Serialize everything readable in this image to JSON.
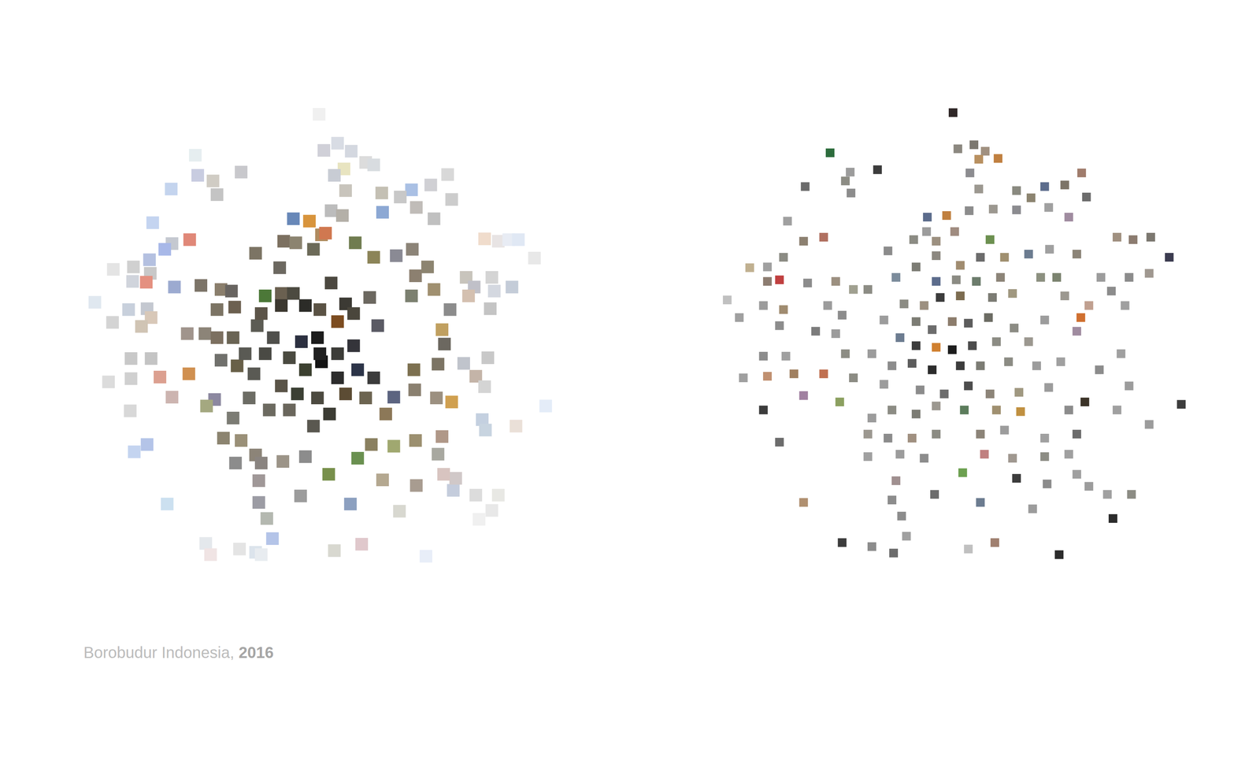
{
  "caption": {
    "text": "Borobudur Indonesia,",
    "year": "2016"
  },
  "chart_data": [
    {
      "type": "scatter",
      "marker": "square",
      "tick_labels": false,
      "grid": false,
      "xlim": [
        100,
        700
      ],
      "ylim": [
        720,
        120
      ],
      "x": [
        397,
        243,
        420,
        437,
        403,
        300,
        265,
        246,
        270,
        213,
        428,
        455,
        465,
        416,
        430,
        475,
        512,
        536,
        557,
        562,
        498,
        518,
        476,
        540,
        412,
        426,
        190,
        236,
        214,
        205,
        186,
        166,
        141,
        187,
        165,
        182,
        217,
        118,
        160,
        183,
        188,
        176,
        140,
        603,
        620,
        633,
        645,
        665,
        580,
        612,
        590,
        615,
        637,
        583,
        610,
        163,
        188,
        135,
        163,
        199,
        235,
        214,
        162,
        183,
        167,
        607,
        577,
        592,
        603,
        679,
        600,
        604,
        642,
        208,
        256,
        262,
        298,
        318,
        339,
        325,
        416,
        450,
        530,
        497,
        592,
        620,
        596,
        612,
        564,
        567,
        552,
        365,
        385,
        400,
        405,
        353,
        368,
        390,
        442,
        465,
        493,
        513,
        318,
        348,
        250,
        275,
        288,
        330,
        350,
        517,
        532,
        512,
        540,
        560,
        550,
        553,
        233,
        255,
        270,
        290,
        270,
        292,
        275,
        295,
        316,
        515,
        545,
        516,
        490,
        480,
        543,
        562,
        267,
        257,
        290,
        278,
        300,
        318,
        293,
        325,
        352,
        380,
        409,
        445,
        462,
        490,
        517,
        545,
        550,
        322,
        322,
        332,
        374,
        436,
        476,
        518,
        350,
        365,
        380,
        398,
        430,
        412,
        420,
        440,
        460,
        470,
        395,
        375,
        400,
        420,
        440,
        445,
        465,
        380,
        360,
        340,
        320,
        330,
        350,
        370,
        395,
        410,
        430,
        455,
        390,
        360,
        335,
        310,
        305,
        325,
        420,
        398
      ],
      "values": [
        142,
        193,
        178,
        188,
        187,
        214,
        225,
        218,
        242,
        235,
        210,
        202,
        205,
        218,
        237,
        240,
        236,
        230,
        217,
        248,
        245,
        258,
        264,
        272,
        262,
        268,
        277,
        298,
        303,
        310,
        323,
        332,
        335,
        340,
        350,
        351,
        357,
        376,
        385,
        384,
        395,
        406,
        401,
        297,
        300,
        298,
        298,
        321,
        345,
        345,
        357,
        362,
        357,
        368,
        384,
        446,
        446,
        475,
        471,
        469,
        465,
        494,
        511,
        553,
        562,
        445,
        452,
        468,
        481,
        505,
        522,
        535,
        530,
        627,
        676,
        690,
        683,
        687,
        670,
        690,
        685,
        677,
        692,
        636,
        616,
        616,
        646,
        635,
        610,
        595,
        590,
        272,
        275,
        292,
        290,
        300,
        302,
        310,
        302,
        320,
        318,
        310,
        315,
        333,
        355,
        360,
        362,
        368,
        365,
        343,
        332,
        368,
        360,
        385,
        410,
        428,
        415,
        415,
        420,
        420,
        385,
        382,
        448,
        455,
        465,
        460,
        453,
        485,
        494,
        515,
        495,
        500,
        497,
        505,
        520,
        545,
        548,
        566,
        576,
        576,
        574,
        568,
        590,
        570,
        553,
        555,
        548,
        565,
        543,
        598,
        625,
        645,
        617,
        627,
        597,
        604,
        380,
        365,
        380,
        385,
        378,
        352,
        400,
        390,
        370,
        405,
        420,
        425,
        450,
        440,
        430,
        460,
        470,
        460,
        445,
        420,
        405,
        440,
        480,
        490,
        495,
        515,
        490,
        495,
        530,
        510,
        510,
        495,
        440,
        390,
        470,
        440
      ],
      "colors": [
        "#f0f0f0",
        "#e6eef0",
        "#d8dce4",
        "#d4d8e0",
        "#d0d0d8",
        "#c8c8cc",
        "#d0ccc4",
        "#c8cce0",
        "#c4c4c4",
        "#c4d4ee",
        "#e8e4c0",
        "#dcdcdc",
        "#d8dce0",
        "#c8ccd4",
        "#c8c4bc",
        "#c4c0b4",
        "#aac0e4",
        "#d0d0d4",
        "#d8d8d8",
        "#cccccc",
        "#c8c8c8",
        "#c0bcb8",
        "#8ca8d4",
        "#c0c0c0",
        "#bcbcbc",
        "#b4b0a8",
        "#c4d4f0",
        "#e08878",
        "#c4c8d0",
        "#a8b8e8",
        "#b4c0e0",
        "#d0d0d0",
        "#e4e4e4",
        "#c8c8c8",
        "#d0d4dc",
        "#e49080",
        "#9caad0",
        "#e0e8f0",
        "#c8d0dc",
        "#c4c8d0",
        "#d8c8b8",
        "#d0c4b4",
        "#d4d4d4",
        "#f0dccc",
        "#e8e4e4",
        "#e8ecf4",
        "#e0e8f4",
        "#e8e8e8",
        "#c8c4bc",
        "#d4d4d4",
        "#c0c0c8",
        "#d4d8e0",
        "#c4ccd8",
        "#d4c0b0",
        "#c4c4c4",
        "#c8c8c8",
        "#c4c4c4",
        "#dcdcdc",
        "#d0d0d0",
        "#dca090",
        "#d09050",
        "#ccb4b0",
        "#d8d8d8",
        "#b4c4e8",
        "#c4d4f0",
        "#c8c8c8",
        "#c0c4cc",
        "#c4b4a8",
        "#d4d4d4",
        "#e4ecf8",
        "#c4d0e0",
        "#c8d4e0",
        "#eae0d8",
        "#cce0f0",
        "#e4e8ec",
        "#f0e4e4",
        "#e4e4e4",
        "#dce4ec",
        "#b4c4e8",
        "#e8ecf0",
        "#d8d8d0",
        "#e0c8cc",
        "#e8eef8",
        "#d8d8d0",
        "#dcdcdc",
        "#e8e8e4",
        "#f0f0f0",
        "#e8e8e8",
        "#c4ccdc",
        "#d0c8c8",
        "#d8c4c0",
        "#6888b8",
        "#d8943c",
        "#b08c60",
        "#d07850",
        "#7c7060",
        "#8c8470",
        "#6c6a58",
        "#707c50",
        "#8c8458",
        "#8a8a94",
        "#8c8478",
        "#7c7464",
        "#6c6860",
        "#7c7468",
        "#8a7e6c",
        "#686460",
        "#4c7838",
        "#6a6050",
        "#8c8070",
        "#8c8470",
        "#7c8070",
        "#a09070",
        "#8c8c8c",
        "#c0a060",
        "#6c6860",
        "#a0948c",
        "#8c8478",
        "#7c7060",
        "#6a6454",
        "#7c7464",
        "#6c6050",
        "#70706c",
        "#686048",
        "#5a5a54",
        "#7c7050",
        "#7c7464",
        "#8a8070",
        "#5c6480",
        "#8c7858",
        "#9c9080",
        "#d0a050",
        "#8c88a0",
        "#a4a880",
        "#7c7c74",
        "#8c8470",
        "#9a9078",
        "#8c8478",
        "#8c8c8c",
        "#8a8480",
        "#9c9488",
        "#8c8c8c",
        "#78904c",
        "#6a9050",
        "#8a8060",
        "#a0a870",
        "#9c9070",
        "#a8a8a0",
        "#b09888",
        "#a09898",
        "#9c9ca4",
        "#b4b8b0",
        "#9c9c9c",
        "#8ca0c0",
        "#b4a890",
        "#a89c90",
        "#3c3830",
        "#4c4a40",
        "#2c2c28",
        "#5a5244",
        "#3c3a34",
        "#4c4840",
        "#7c4c20",
        "#4a463c",
        "#6c6860",
        "#5a5a64",
        "#1c1c1c",
        "#2c3040",
        "#141414",
        "#3c3c38",
        "#34343a",
        "#2c3448",
        "#3c3c3c",
        "#3c4030",
        "#4a4a40",
        "#50504c",
        "#5c5c54",
        "#4a4a44",
        "#5a5448",
        "#3c4034",
        "#4c4a40",
        "#3c3c34",
        "#5c4c34",
        "#6c6450",
        "#5a5850",
        "#6a665c",
        "#6c6a60",
        "#6c6c64",
        "#5a5a54",
        "#5c5448",
        "#2c2c2c",
        "#202020"
      ]
    },
    {
      "type": "scatter",
      "marker": "square",
      "tick_labels": false,
      "grid": false,
      "xlim": [
        890,
        1490
      ],
      "ylim": [
        720,
        120
      ],
      "x": [
        1186,
        1033,
        1092,
        1192,
        1212,
        1226,
        1218,
        1207,
        1242,
        1058,
        1052,
        1002,
        1059,
        1218,
        1265,
        1300,
        1283,
        1325,
        1346,
        1206,
        1236,
        1265,
        1305,
        1330,
        1352,
        1154,
        1178,
        1153,
        1188,
        980,
        1025,
        1000,
        1137,
        1165,
        1232,
        1390,
        1410,
        1432,
        1455,
        1105,
        1250,
        1280,
        1306,
        1340,
        975,
        955,
        933,
        1140,
        1195,
        1220,
        1165,
        1295,
        1315,
        1370,
        1405,
        1430,
        955,
        970,
        1005,
        1040,
        1062,
        1080,
        1115,
        1165,
        1190,
        1215,
        1245,
        1170,
        1195,
        1150,
        1125,
        1235,
        1260,
        1325,
        1355,
        1383,
        1400,
        905,
        950,
        975,
        1030,
        1048,
        1100,
        1140,
        1160,
        1185,
        1205,
        1230,
        1262,
        1300,
        1345,
        920,
        970,
        1015,
        1040,
        1120,
        1140,
        1165,
        1185,
        1210,
        1240,
        1280,
        1340,
        1395,
        950,
        978,
        1052,
        1085,
        1110,
        1135,
        1160,
        1195,
        1220,
        1255,
        1290,
        1320,
        1368,
        925,
        955,
        988,
        1025,
        1062,
        1100,
        1145,
        1175,
        1205,
        1232,
        1268,
        1305,
        1350,
        1405,
        1470,
        1000,
        1045,
        950,
        1085,
        1110,
        1140,
        1165,
        1200,
        1240,
        1270,
        1330,
        1390,
        1080,
        1105,
        1135,
        1165,
        1220,
        1250,
        1300,
        1340,
        1430,
        970,
        1080,
        1120,
        1150,
        1225,
        1260,
        1300,
        1330,
        1198,
        1115,
        1265,
        1303,
        1340,
        1355,
        1000,
        1110,
        1163,
        1220,
        1285,
        1378,
        1408,
        1385,
        1122,
        1128,
        1048,
        1085,
        1112,
        1205,
        1238,
        1318
      ],
      "values": [
        140,
        190,
        211,
        185,
        180,
        188,
        198,
        215,
        197,
        214,
        225,
        232,
        240,
        235,
        237,
        232,
        246,
        230,
        215,
        262,
        260,
        261,
        258,
        270,
        245,
        270,
        268,
        288,
        288,
        275,
        295,
        300,
        298,
        300,
        298,
        295,
        298,
        295,
        320,
        312,
        320,
        316,
        310,
        316,
        320,
        332,
        333,
        332,
        330,
        320,
        318,
        345,
        345,
        345,
        345,
        340,
        350,
        348,
        352,
        350,
        360,
        360,
        345,
        350,
        348,
        350,
        345,
        370,
        368,
        380,
        378,
        370,
        365,
        368,
        380,
        362,
        380,
        373,
        380,
        385,
        380,
        392,
        398,
        400,
        410,
        400,
        402,
        395,
        408,
        398,
        395,
        395,
        405,
        412,
        415,
        420,
        430,
        432,
        435,
        430,
        425,
        425,
        412,
        440,
        443,
        443,
        440,
        440,
        455,
        452,
        460,
        455,
        455,
        450,
        455,
        450,
        460,
        470,
        468,
        465,
        465,
        470,
        478,
        485,
        490,
        480,
        490,
        488,
        482,
        500,
        480,
        503,
        492,
        500,
        510,
        520,
        510,
        515,
        505,
        510,
        510,
        512,
        510,
        510,
        540,
        545,
        545,
        540,
        540,
        535,
        545,
        540,
        528,
        550,
        568,
        565,
        570,
        565,
        570,
        568,
        565,
        588,
        598,
        595,
        602,
        590,
        605,
        625,
        622,
        615,
        625,
        633,
        615,
        615,
        645,
        642,
        667,
        675,
        680,
        688,
        683,
        675,
        690
      ],
      "colors": [
        "#302828",
        "#2c6c3c",
        "#3c3c3c",
        "#8c8880",
        "#7c7870",
        "#a09080",
        "#b89060",
        "#8c8c90",
        "#c08040",
        "#9c9c9c",
        "#8c8c84",
        "#6c6c6c",
        "#8c8c8c",
        "#9c9890",
        "#8a8a80",
        "#5c6c8c",
        "#8c8470",
        "#7c7468",
        "#a07c6c",
        "#8c8c8c",
        "#9c9890",
        "#8c8c90",
        "#a0a0a0",
        "#a08ca0",
        "#6c6c6c",
        "#5c6c8c",
        "#c08040",
        "#9c9c9c",
        "#a08c80",
        "#a0a0a0",
        "#b07060",
        "#8c8070",
        "#8c8c84",
        "#9c9080",
        "#6c9050",
        "#a09080",
        "#8c7c70",
        "#7c7870",
        "#3c3c50",
        "#8c8c8c",
        "#a09070",
        "#6c7c90",
        "#a0a0a0",
        "#8c8478",
        "#8c8c84",
        "#a0a0a0",
        "#c0b090",
        "#7c7c74",
        "#a08c70",
        "#6c6c6c",
        "#8c8880",
        "#8c9080",
        "#7c8470",
        "#9c9c9c",
        "#8c8c8c",
        "#a09890",
        "#8c7c70",
        "#c04040",
        "#8c8c8c",
        "#9c9080",
        "#a0a090",
        "#8c8c84",
        "#7c8c9c",
        "#5c6c8c",
        "#8c8c84",
        "#6c7c6c",
        "#8c8478",
        "#3c3c3c",
        "#7c6c50",
        "#9c9080",
        "#8c8c84",
        "#7c7c74",
        "#a09880",
        "#9c9890",
        "#c0a090",
        "#8c8c8c",
        "#a0a0a0",
        "#c0c0c0",
        "#9c9c9c",
        "#a08c70",
        "#9c9c9c",
        "#8c8c8c",
        "#9c9c9c",
        "#7c7c74",
        "#6c6c6c",
        "#8c7c6c",
        "#5c5c5c",
        "#6c6c64",
        "#8c8c84",
        "#9c9c9c",
        "#d07030",
        "#a0a0a0",
        "#8c8c8c",
        "#7c7c7c",
        "#9c9c9c",
        "#6c7c90",
        "#3c3c3c",
        "#d08030",
        "#1c1c1c",
        "#4c4c4c",
        "#8c8c84",
        "#9c9890",
        "#a08ca0",
        "#a0a0a0",
        "#8c8c8c",
        "#a0a0a0",
        "#8c8c84",
        "#9c9c9c",
        "#8c8c8c",
        "#5c5c5c",
        "#2c2c2c",
        "#3c3c3c",
        "#7c7c74",
        "#8c8c84",
        "#9c9c9c",
        "#a0a0a0",
        "#8c8c8c",
        "#a0a0a0",
        "#c09070",
        "#a08060",
        "#c07050",
        "#8c8c84",
        "#9c9c9c",
        "#8c8c8c",
        "#6c6c6c",
        "#4c4c4c",
        "#8c8478",
        "#a09880",
        "#9c9c9c",
        "#3c3428",
        "#9c9c9c",
        "#3c3c3c",
        "#a080a0",
        "#8ca060",
        "#3c3c3c",
        "#9c9c9c",
        "#8c8c84",
        "#7c7c74",
        "#9c9890",
        "#5c7c5c",
        "#a09070",
        "#c09040",
        "#8c8c8c",
        "#a0a0a0",
        "#9c9890",
        "#8c8c8c",
        "#a09080",
        "#8c8c84",
        "#8c8478",
        "#9c9c9c",
        "#a0a0a0",
        "#6c6c6c",
        "#9c9c9c",
        "#6c6c6c",
        "#a0a0a0",
        "#9c9c9c",
        "#8c8c8c",
        "#c08080",
        "#a09890",
        "#8c8c84",
        "#a0a0a0",
        "#6ca050",
        "#a09090",
        "#3c3c3c",
        "#8c8c8c",
        "#a0a0a0",
        "#9c9c9c",
        "#b09070",
        "#8c8c8c",
        "#6c6c6c",
        "#6c7c90",
        "#9c9c9c",
        "#a0a0a0",
        "#8c8c84",
        "#2c2c2c",
        "#8c8c8c",
        "#a0a0a0",
        "#3c3c3c",
        "#8c8c8c",
        "#6c6c6c",
        "#c0c0c0",
        "#a08070",
        "#2c2c2c"
      ]
    }
  ]
}
